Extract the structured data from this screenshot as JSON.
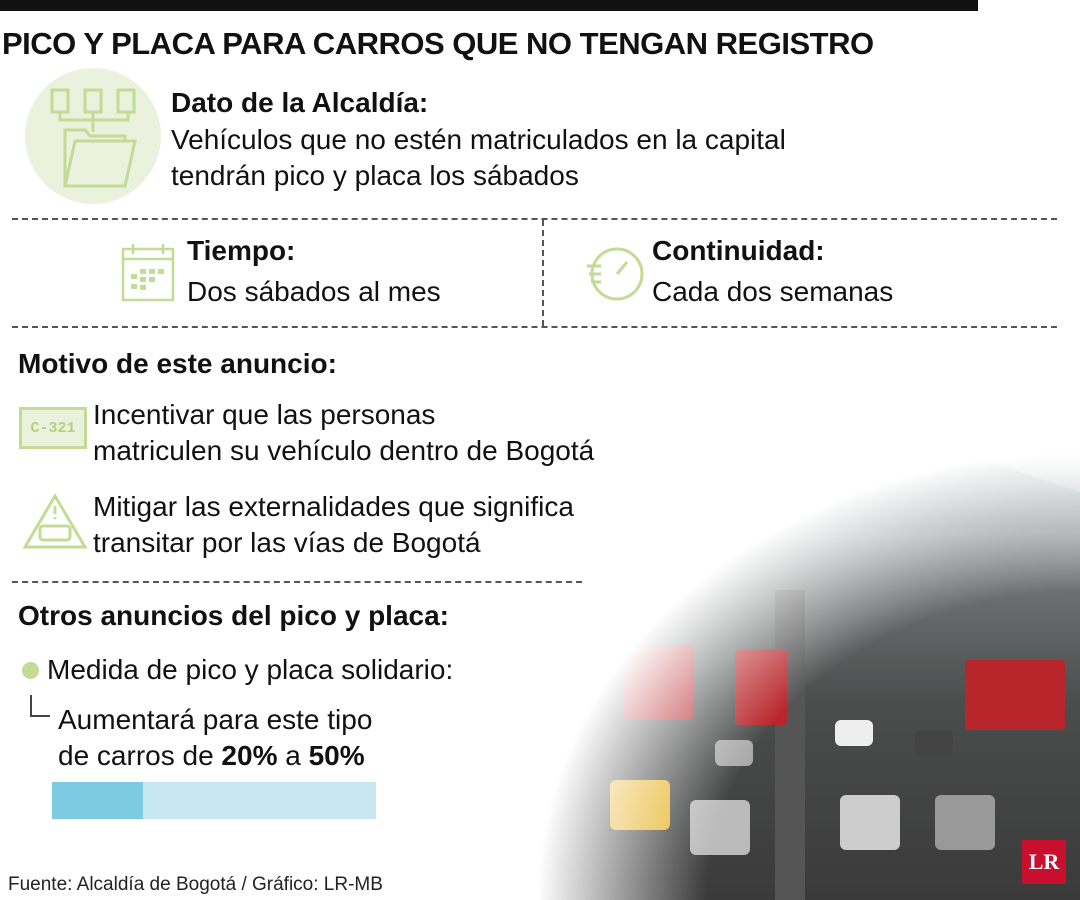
{
  "title": "PICO Y PLACA PARA CARROS QUE NO TENGAN REGISTRO",
  "dato": {
    "heading": "Dato de la Alcaldía:",
    "line1": "Vehículos que no estén matriculados en la capital",
    "line2": "tendrán pico y placa los sábados",
    "icon": "documents-folder-icon"
  },
  "tiempo": {
    "heading": "Tiempo:",
    "text": "Dos sábados al mes",
    "icon": "calendar-icon"
  },
  "continuidad": {
    "heading": "Continuidad:",
    "text": "Cada dos semanas",
    "icon": "stopwatch-icon"
  },
  "motivo": {
    "heading": "Motivo de este anuncio:",
    "items": [
      {
        "icon": "license-plate-icon",
        "plate": "C-321",
        "line1": "Incentivar que las personas",
        "line2": "matriculen su vehículo dentro de Bogotá"
      },
      {
        "icon": "car-warning-icon",
        "line1": "Mitigar las externalidades que significa",
        "line2": "transitar por las vías de Bogotá"
      }
    ]
  },
  "otros": {
    "heading": "Otros anuncios del pico y placa:",
    "bullet": "Medida de pico y placa solidario:",
    "sub1": "Aumentará para este tipo",
    "sub2_pre": "de carros de ",
    "from": "20%",
    "mid": " a ",
    "to": "50%",
    "bar": {
      "filled_fraction": 0.28,
      "fill_color": "#7ecae3",
      "track_color": "#c6e6f1"
    }
  },
  "source": "Fuente: Alcaldía de Bogotá / Gráfico: LR-MB",
  "logo": "LR",
  "colors": {
    "icon_green": "#c3db94",
    "circle_bg": "#eaf2dd"
  }
}
